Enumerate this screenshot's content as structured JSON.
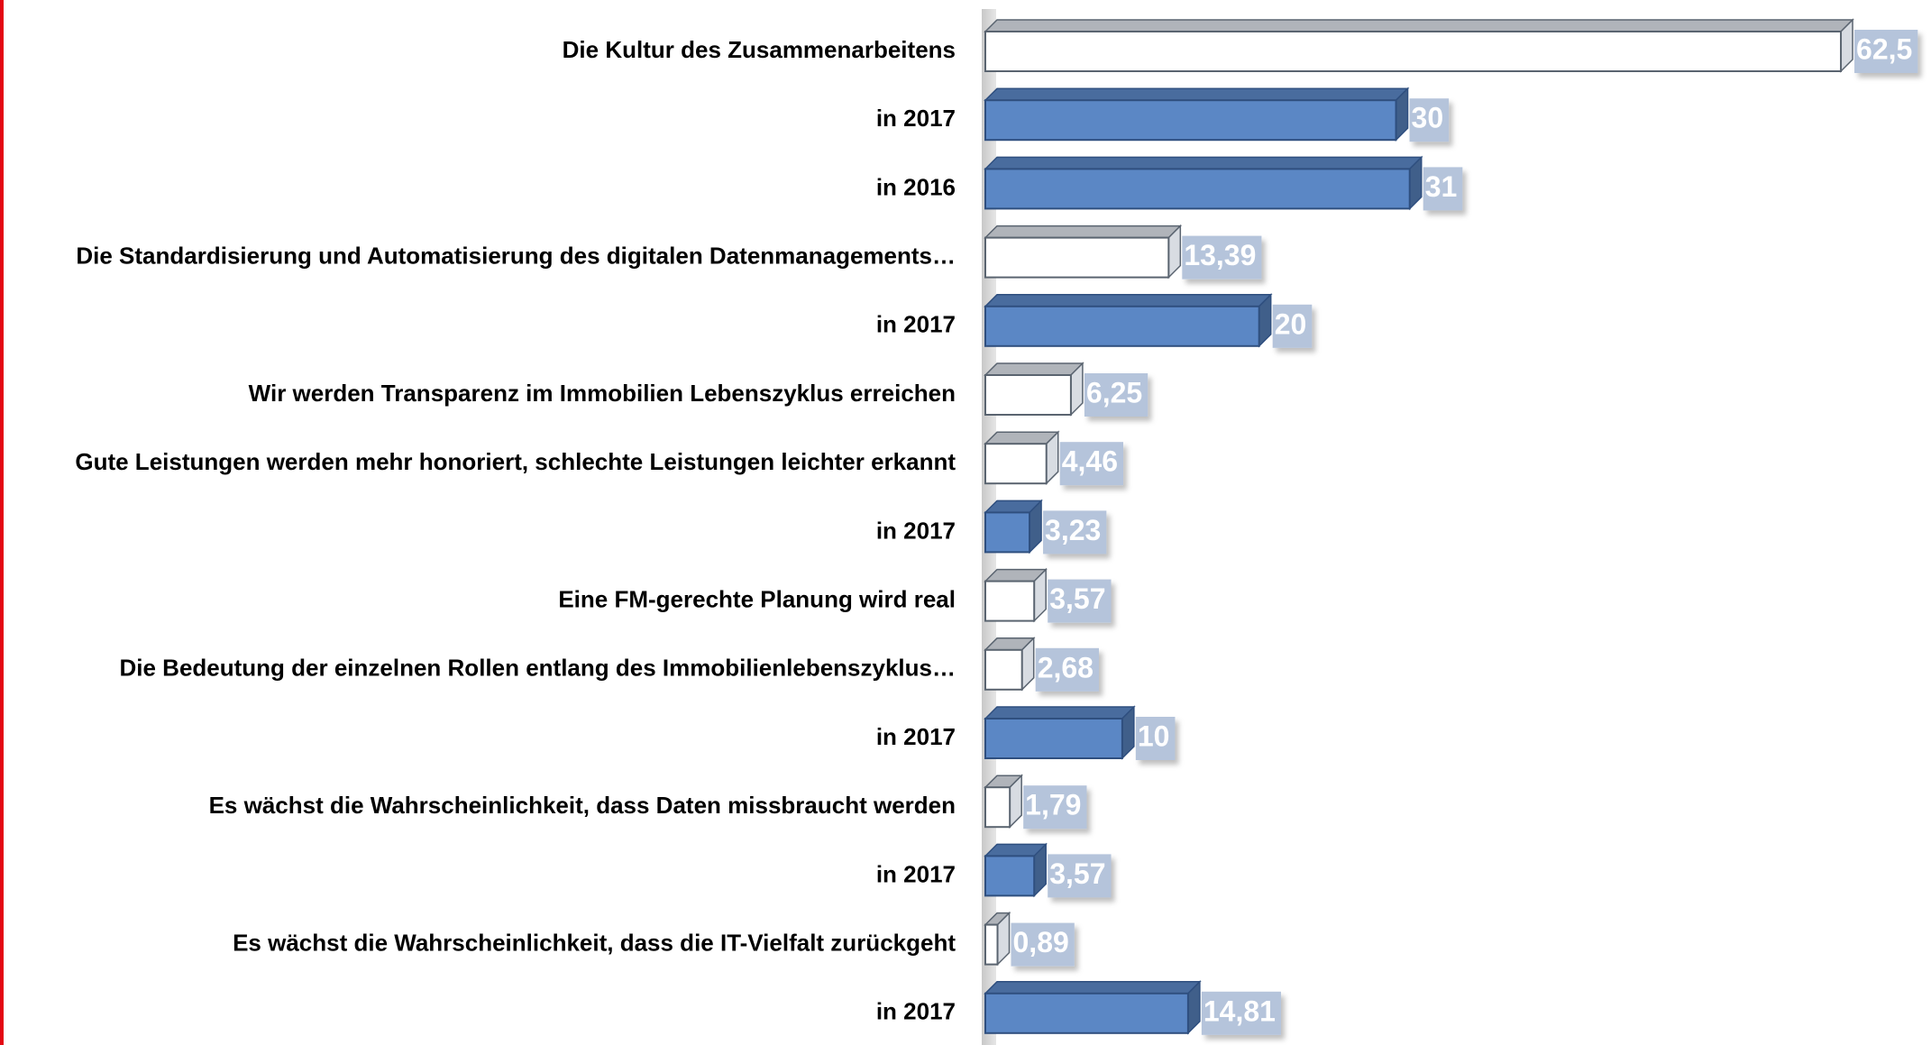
{
  "chart_data": {
    "type": "bar",
    "orientation": "horizontal",
    "categories": [
      "Die Kultur des Zusammenarbeitens",
      "in 2017",
      "in 2016",
      "Die Standardisierung und Automatisierung des digitalen Datenmanagements…",
      "in 2017",
      "Wir werden Transparenz im Immobilien Lebenszyklus erreichen",
      "Gute Leistungen werden mehr honoriert, schlechte Leistungen leichter erkannt",
      "in 2017",
      "Eine FM-gerechte Planung wird real",
      "Die Bedeutung der einzelnen Rollen entlang des Immobilienlebenszyklus…",
      "in 2017",
      "Es wächst die Wahrscheinlichkeit, dass Daten missbraucht werden",
      "in 2017",
      "Es wächst die Wahrscheinlichkeit, dass die IT-Vielfalt zurückgeht",
      "in 2017"
    ],
    "values": [
      62.5,
      30,
      31,
      13.39,
      20,
      6.25,
      4.46,
      3.23,
      3.57,
      2.68,
      10,
      1.79,
      3.57,
      0.89,
      14.81
    ],
    "value_labels": [
      "62,5",
      "30",
      "31",
      "13,39",
      "20",
      "6,25",
      "4,46",
      "3,23",
      "3,57",
      "2,68",
      "10",
      "1,79",
      "3,57",
      "0,89",
      "14,81"
    ],
    "colors": [
      "#ffffff",
      "#5b87c5",
      "#5b87c5",
      "#ffffff",
      "#5b87c5",
      "#ffffff",
      "#ffffff",
      "#5b87c5",
      "#ffffff",
      "#ffffff",
      "#5b87c5",
      "#ffffff",
      "#5b87c5",
      "#ffffff",
      "#5b87c5"
    ],
    "xlim": [
      0,
      65
    ]
  }
}
